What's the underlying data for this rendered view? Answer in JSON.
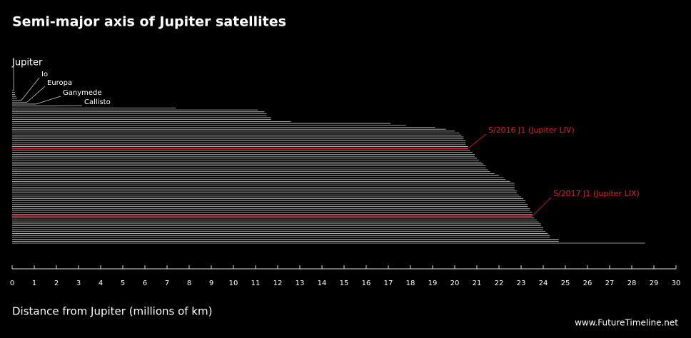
{
  "chart_data": {
    "type": "hlines",
    "title": "Semi-major axis of Jupiter satellites",
    "xlabel": "Distance from Jupiter (millions of km)",
    "credit": "www.FutureTimeline.net",
    "categories": [
      "Jupiter",
      null,
      null,
      null,
      null,
      "Io",
      "Europa",
      "Ganymede",
      "Callisto",
      null,
      null,
      null,
      null,
      null,
      null,
      null,
      null,
      null,
      null,
      null,
      null,
      null,
      null,
      null,
      null,
      null,
      null,
      null,
      null,
      null,
      "S/2016 J1 (Jupiter LIV)",
      null,
      null,
      null,
      null,
      null,
      null,
      null,
      null,
      null,
      null,
      null,
      null,
      null,
      null,
      null,
      null,
      null,
      null,
      null,
      null,
      null,
      null,
      null,
      null,
      null,
      null,
      null,
      null,
      null,
      null,
      null,
      null,
      null,
      null,
      "S/2017 J1 (Jupiter LIX)",
      null,
      null,
      null,
      null,
      null,
      null,
      null,
      null,
      null,
      null,
      null,
      null,
      null,
      null
    ],
    "values": [
      0.07,
      0.128,
      0.129,
      0.181,
      0.222,
      0.422,
      0.671,
      1.07,
      1.883,
      7.4,
      11.1,
      11.4,
      11.5,
      11.5,
      11.7,
      11.7,
      12.6,
      17.1,
      17.8,
      19.1,
      19.6,
      20.0,
      20.2,
      20.3,
      20.4,
      20.4,
      20.5,
      20.5,
      20.5,
      20.6,
      20.6,
      20.7,
      20.8,
      20.9,
      20.9,
      21.0,
      21.1,
      21.2,
      21.3,
      21.4,
      21.4,
      21.5,
      21.6,
      21.8,
      22.0,
      22.2,
      22.3,
      22.5,
      22.7,
      22.7,
      22.7,
      22.7,
      22.8,
      22.8,
      22.9,
      23.0,
      23.1,
      23.2,
      23.2,
      23.3,
      23.3,
      23.4,
      23.4,
      23.5,
      23.5,
      23.5,
      23.6,
      23.7,
      23.8,
      23.9,
      23.9,
      24.0,
      24.0,
      24.1,
      24.2,
      24.3,
      24.3,
      24.7,
      24.7,
      28.6
    ],
    "colors": [
      "#cccccc",
      "#cccccc",
      "#cccccc",
      "#cccccc",
      "#cccccc",
      "#cccccc",
      "#cccccc",
      "#cccccc",
      "#cccccc",
      "#cccccc",
      "#cccccc",
      "#cccccc",
      "#cccccc",
      "#cccccc",
      "#cccccc",
      "#cccccc",
      "#cccccc",
      "#cccccc",
      "#cccccc",
      "#cccccc",
      "#cccccc",
      "#cccccc",
      "#cccccc",
      "#cccccc",
      "#cccccc",
      "#cccccc",
      "#cccccc",
      "#cccccc",
      "#cccccc",
      "#cccccc",
      "#e01e2a",
      "#cccccc",
      "#cccccc",
      "#cccccc",
      "#cccccc",
      "#cccccc",
      "#cccccc",
      "#cccccc",
      "#cccccc",
      "#cccccc",
      "#cccccc",
      "#cccccc",
      "#cccccc",
      "#cccccc",
      "#cccccc",
      "#cccccc",
      "#cccccc",
      "#cccccc",
      "#cccccc",
      "#cccccc",
      "#cccccc",
      "#cccccc",
      "#cccccc",
      "#cccccc",
      "#cccccc",
      "#cccccc",
      "#cccccc",
      "#cccccc",
      "#cccccc",
      "#cccccc",
      "#cccccc",
      "#cccccc",
      "#cccccc",
      "#cccccc",
      "#cccccc",
      "#e01e2a",
      "#cccccc",
      "#cccccc",
      "#cccccc",
      "#cccccc",
      "#cccccc",
      "#cccccc",
      "#cccccc",
      "#cccccc",
      "#cccccc",
      "#cccccc",
      "#cccccc",
      "#cccccc",
      "#cccccc",
      "#cccccc"
    ],
    "xlim": [
      0,
      30
    ],
    "xticks": [
      0,
      1,
      2,
      3,
      4,
      5,
      6,
      7,
      8,
      9,
      10,
      11,
      12,
      13,
      14,
      15,
      16,
      17,
      18,
      19,
      20,
      21,
      22,
      23,
      24,
      25,
      26,
      27,
      28,
      29,
      30
    ]
  }
}
